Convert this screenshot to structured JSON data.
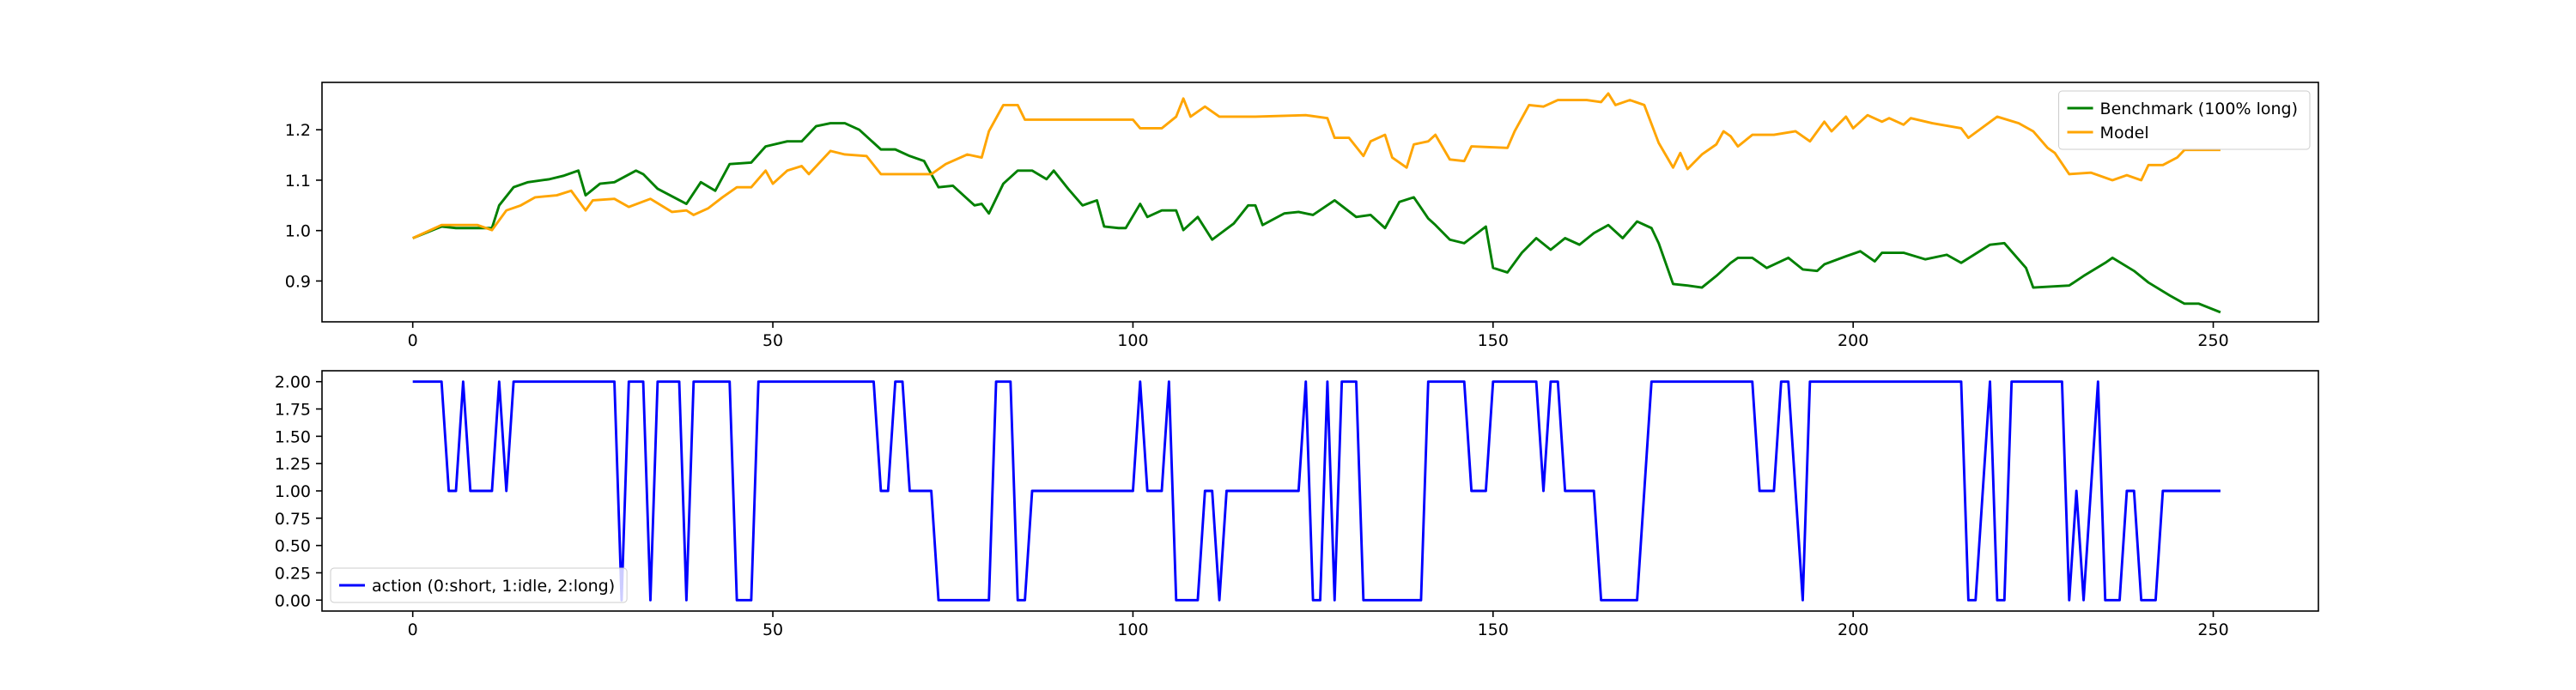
{
  "chart_data": [
    {
      "type": "line",
      "xlim": [
        -12.6,
        264.6
      ],
      "ylim": [
        0.819,
        1.294
      ],
      "xticks": [
        0,
        50,
        100,
        150,
        200,
        250
      ],
      "yticks": [
        0.9,
        {
          "value": 1,
          "label": "1.0"
        },
        1.1,
        1.2
      ],
      "legend": "upper right",
      "grid": false,
      "series": [
        {
          "name": "Benchmark (100% long)",
          "color": "green",
          "x": [
            0,
            4,
            6,
            9,
            11,
            12,
            14,
            16,
            19,
            21,
            23,
            24,
            26,
            28,
            31,
            32,
            34,
            38,
            40,
            42,
            44,
            47,
            49,
            52,
            54,
            56,
            58,
            60,
            62,
            65,
            67,
            69,
            71,
            73,
            75,
            78,
            79,
            80,
            82,
            84,
            86,
            88,
            89,
            91,
            93,
            95,
            96,
            98,
            99,
            101,
            102,
            104,
            106,
            107,
            109,
            111,
            114,
            116,
            117,
            118,
            121,
            123,
            125,
            128,
            131,
            133,
            135,
            137,
            139,
            141,
            142,
            144,
            146,
            149,
            150,
            152,
            154,
            156,
            158,
            160,
            162,
            164,
            166,
            168,
            170,
            172,
            173,
            175,
            177,
            179,
            181,
            183,
            184,
            186,
            188,
            191,
            193,
            195,
            196,
            199,
            201,
            203,
            204,
            207,
            210,
            213,
            215,
            219,
            221,
            224,
            225,
            230,
            232,
            235,
            236,
            239,
            241,
            244,
            246,
            248,
            251
          ],
          "values": [
            0.985,
            1.008,
            1.005,
            1.005,
            1.005,
            1.05,
            1.086,
            1.096,
            1.102,
            1.109,
            1.119,
            1.07,
            1.093,
            1.096,
            1.119,
            1.112,
            1.083,
            1.053,
            1.096,
            1.079,
            1.132,
            1.135,
            1.167,
            1.177,
            1.177,
            1.207,
            1.213,
            1.213,
            1.2,
            1.161,
            1.161,
            1.148,
            1.138,
            1.086,
            1.089,
            1.05,
            1.053,
            1.034,
            1.093,
            1.119,
            1.119,
            1.102,
            1.119,
            1.083,
            1.05,
            1.06,
            1.008,
            1.005,
            1.005,
            1.053,
            1.027,
            1.04,
            1.04,
            1.001,
            1.027,
            0.982,
            1.014,
            1.05,
            1.05,
            1.011,
            1.034,
            1.037,
            1.031,
            1.06,
            1.027,
            1.031,
            1.005,
            1.057,
            1.066,
            1.024,
            1.011,
            0.982,
            0.975,
            1.008,
            0.926,
            0.917,
            0.956,
            0.985,
            0.962,
            0.985,
            0.972,
            0.995,
            1.011,
            0.985,
            1.018,
            1.005,
            0.975,
            0.894,
            0.891,
            0.887,
            0.91,
            0.936,
            0.946,
            0.946,
            0.926,
            0.946,
            0.923,
            0.92,
            0.933,
            0.949,
            0.959,
            0.939,
            0.956,
            0.956,
            0.943,
            0.952,
            0.936,
            0.972,
            0.975,
            0.926,
            0.887,
            0.891,
            0.91,
            0.936,
            0.946,
            0.92,
            0.897,
            0.871,
            0.855,
            0.855,
            0.838
          ]
        },
        {
          "name": "Model",
          "color": "orange",
          "x": [
            0,
            4,
            9,
            11,
            13,
            15,
            17,
            20,
            22,
            24,
            25,
            28,
            30,
            33,
            36,
            38,
            39,
            41,
            43,
            45,
            47,
            49,
            50,
            52,
            54,
            55,
            58,
            60,
            63,
            65,
            68,
            72,
            74,
            77,
            79,
            80,
            82,
            84,
            85,
            89,
            100,
            101,
            104,
            106,
            107,
            108,
            110,
            112,
            117,
            124,
            127,
            128,
            130,
            132,
            133,
            135,
            136,
            138,
            139,
            141,
            142,
            144,
            146,
            147,
            152,
            153,
            155,
            157,
            159,
            163,
            165,
            166,
            167,
            169,
            171,
            173,
            175,
            176,
            177,
            179,
            181,
            182,
            183,
            184,
            186,
            189,
            192,
            194,
            196,
            197,
            199,
            200,
            202,
            204,
            205,
            207,
            208,
            211,
            215,
            216,
            220,
            223,
            225,
            227,
            228,
            230,
            233,
            236,
            238,
            240,
            241,
            243,
            245,
            246,
            251
          ],
          "values": [
            0.985,
            1.011,
            1.011,
            1.001,
            1.04,
            1.05,
            1.066,
            1.07,
            1.079,
            1.04,
            1.06,
            1.063,
            1.047,
            1.063,
            1.037,
            1.04,
            1.031,
            1.044,
            1.066,
            1.086,
            1.086,
            1.119,
            1.093,
            1.119,
            1.128,
            1.112,
            1.158,
            1.151,
            1.148,
            1.112,
            1.112,
            1.112,
            1.132,
            1.151,
            1.145,
            1.197,
            1.249,
            1.249,
            1.22,
            1.22,
            1.22,
            1.203,
            1.203,
            1.226,
            1.262,
            1.226,
            1.246,
            1.226,
            1.226,
            1.229,
            1.223,
            1.184,
            1.184,
            1.148,
            1.177,
            1.19,
            1.145,
            1.125,
            1.171,
            1.177,
            1.19,
            1.141,
            1.138,
            1.167,
            1.164,
            1.197,
            1.249,
            1.246,
            1.259,
            1.259,
            1.255,
            1.272,
            1.249,
            1.259,
            1.249,
            1.174,
            1.125,
            1.154,
            1.122,
            1.151,
            1.171,
            1.197,
            1.187,
            1.167,
            1.19,
            1.19,
            1.197,
            1.177,
            1.216,
            1.197,
            1.226,
            1.203,
            1.229,
            1.216,
            1.223,
            1.21,
            1.223,
            1.213,
            1.203,
            1.184,
            1.226,
            1.213,
            1.197,
            1.164,
            1.154,
            1.112,
            1.115,
            1.1,
            1.11,
            1.1,
            1.13,
            1.13,
            1.145,
            1.16,
            1.16
          ]
        }
      ]
    },
    {
      "type": "line",
      "xlim": [
        -12.6,
        264.6
      ],
      "ylim": [
        -0.1,
        2.1
      ],
      "xticks": [
        0,
        50,
        100,
        150,
        200,
        250
      ],
      "yticks": [
        {
          "value": 0,
          "label": "0.00"
        },
        {
          "value": 0.25,
          "label": "0.25"
        },
        {
          "value": 0.5,
          "label": "0.50"
        },
        {
          "value": 0.75,
          "label": "0.75"
        },
        {
          "value": 1,
          "label": "1.00"
        },
        {
          "value": 1.25,
          "label": "1.25"
        },
        {
          "value": 1.5,
          "label": "1.50"
        },
        {
          "value": 1.75,
          "label": "1.75"
        },
        {
          "value": 2,
          "label": "2.00"
        }
      ],
      "legend": "lower left",
      "grid": false,
      "series": [
        {
          "name": "action (0:short, 1:idle, 2:long)",
          "color": "blue",
          "x": [
            0,
            4,
            5,
            6,
            7,
            8,
            11,
            12,
            13,
            14,
            28,
            29,
            30,
            32,
            33,
            34,
            37,
            38,
            39,
            44,
            45,
            47,
            48,
            64,
            65,
            66,
            67,
            68,
            69,
            72,
            73,
            80,
            81,
            83,
            84,
            85,
            86,
            100,
            101,
            102,
            104,
            105,
            106,
            109,
            110,
            111,
            112,
            113,
            123,
            124,
            125,
            126,
            127,
            128,
            129,
            131,
            132,
            140,
            141,
            146,
            147,
            149,
            150,
            156,
            157,
            158,
            159,
            160,
            164,
            165,
            170,
            172,
            186,
            187,
            189,
            190,
            191,
            193,
            194,
            215,
            216,
            217,
            219,
            220,
            221,
            222,
            229,
            230,
            231,
            232,
            234,
            235,
            237,
            238,
            239,
            240,
            242,
            243,
            251
          ],
          "values": [
            2,
            2,
            1,
            1,
            2,
            1,
            1,
            2,
            1,
            2,
            2,
            0,
            2,
            2,
            0,
            2,
            2,
            0,
            2,
            2,
            0,
            0,
            2,
            2,
            1,
            1,
            2,
            2,
            1,
            1,
            0,
            0,
            2,
            2,
            0,
            0,
            1,
            1,
            2,
            1,
            1,
            2,
            0,
            0,
            1,
            1,
            0,
            1,
            1,
            2,
            0,
            0,
            2,
            0,
            2,
            2,
            0,
            0,
            2,
            2,
            1,
            1,
            2,
            2,
            1,
            2,
            2,
            1,
            1,
            0,
            0,
            2,
            2,
            1,
            1,
            2,
            2,
            0,
            2,
            2,
            0,
            0,
            2,
            0,
            0,
            2,
            2,
            0,
            1,
            0,
            2,
            0,
            0,
            1,
            1,
            0,
            0,
            1,
            1
          ]
        }
      ]
    }
  ]
}
